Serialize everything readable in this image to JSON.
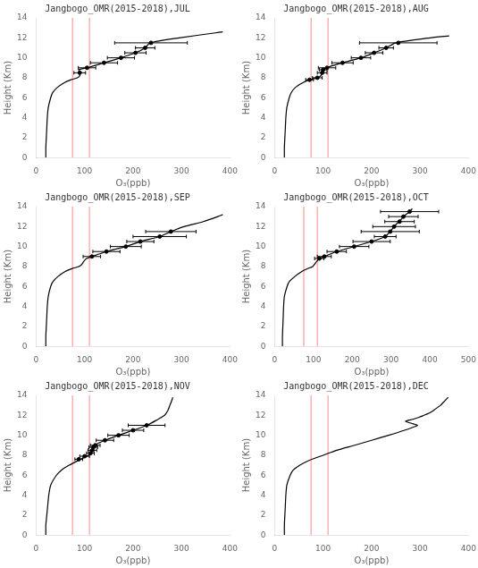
{
  "chart_data": [
    {
      "type": "line",
      "title": "Jangbogo_OMR(2015-2018),JUL",
      "x_label": "O₃(ppb)",
      "y_label": "Height (Km)",
      "xlim": [
        0,
        400
      ],
      "ylim": [
        0,
        14
      ],
      "xticks": [
        0,
        100,
        200,
        300,
        400
      ],
      "yticks": [
        0,
        2,
        4,
        6,
        8,
        10,
        12,
        14
      ],
      "grid": false,
      "vlines": [
        {
          "x": 75,
          "color": "#ff8888"
        },
        {
          "x": 110,
          "color": "#ff8888"
        }
      ],
      "series": [
        {
          "type": "line",
          "color": "black",
          "line_style": "solid",
          "x": [
            20,
            20,
            21,
            22,
            23,
            25,
            30,
            34,
            43,
            58,
            72,
            85,
            90,
            90,
            88,
            105,
            140,
            175,
            205,
            225,
            235,
            295,
            370,
            385
          ],
          "y": [
            0,
            1,
            2,
            3,
            4,
            5,
            6,
            6.5,
            7.0,
            7.5,
            7.8,
            8.0,
            8.2,
            8.5,
            8.8,
            9.0,
            9.5,
            10.0,
            10.5,
            11.0,
            11.5,
            12.0,
            12.5,
            12.6
          ]
        },
        {
          "type": "scatter",
          "color": "black",
          "marker": "dot",
          "x": [
            90,
            105,
            140,
            175,
            205,
            225,
            237
          ],
          "y": [
            8.5,
            9.0,
            9.5,
            10.0,
            10.5,
            11.0,
            11.5
          ],
          "x_err": [
            12,
            18,
            28,
            28,
            22,
            20,
            75
          ]
        }
      ]
    },
    {
      "type": "line",
      "title": "Jangbogo_OMR(2015-2018),AUG",
      "x_label": "O₃(ppb)",
      "y_label": "Height (Km)",
      "xlim": [
        0,
        400
      ],
      "ylim": [
        0,
        14
      ],
      "xticks": [
        0,
        100,
        200,
        300,
        400
      ],
      "yticks": [
        0,
        2,
        4,
        6,
        8,
        10,
        12,
        14
      ],
      "grid": false,
      "vlines": [
        {
          "x": 75,
          "color": "#ff8888"
        },
        {
          "x": 110,
          "color": "#ff8888"
        }
      ],
      "series": [
        {
          "type": "line",
          "color": "black",
          "line_style": "solid",
          "x": [
            20,
            20,
            21,
            22,
            23,
            25,
            30,
            34,
            42,
            58,
            72,
            88,
            95,
            98,
            100,
            108,
            118,
            140,
            178,
            205,
            230,
            250,
            320,
            360
          ],
          "y": [
            0,
            1,
            2,
            3,
            4,
            5,
            6,
            6.5,
            7.0,
            7.5,
            7.8,
            8.0,
            8.2,
            8.5,
            8.8,
            9.0,
            9.2,
            9.5,
            10.0,
            10.5,
            11.0,
            11.5,
            12.0,
            12.2
          ]
        },
        {
          "type": "scatter",
          "color": "black",
          "marker": "dot",
          "x": [
            72,
            88,
            98,
            100,
            108,
            140,
            178,
            205,
            230,
            255
          ],
          "y": [
            7.8,
            8.0,
            8.5,
            8.8,
            9.0,
            9.5,
            10.0,
            10.5,
            11.0,
            11.5
          ],
          "x_err": [
            8,
            10,
            10,
            8,
            18,
            22,
            20,
            18,
            15,
            80
          ]
        }
      ]
    },
    {
      "type": "line",
      "title": "Jangbogo_OMR(2015-2018),SEP",
      "x_label": "O₃(ppb)",
      "y_label": "Height (Km)",
      "xlim": [
        0,
        400
      ],
      "ylim": [
        0,
        14
      ],
      "xticks": [
        0,
        100,
        200,
        300,
        400
      ],
      "yticks": [
        0,
        2,
        4,
        6,
        8,
        10,
        12,
        14
      ],
      "grid": false,
      "vlines": [
        {
          "x": 75,
          "color": "#ff8888"
        },
        {
          "x": 110,
          "color": "#ff8888"
        }
      ],
      "series": [
        {
          "type": "line",
          "color": "black",
          "line_style": "solid",
          "x": [
            20,
            20,
            21,
            22,
            23,
            25,
            30,
            35,
            45,
            60,
            75,
            88,
            94,
            98,
            104,
            115,
            145,
            185,
            215,
            255,
            278,
            305,
            345,
            375,
            385
          ],
          "y": [
            0,
            1,
            2,
            3,
            4,
            5,
            6,
            6.5,
            7.0,
            7.5,
            7.8,
            8.0,
            8.2,
            8.5,
            8.8,
            9.0,
            9.5,
            10.0,
            10.5,
            11.0,
            11.5,
            12.0,
            12.5,
            13.0,
            13.2
          ]
        },
        {
          "type": "scatter",
          "color": "black",
          "marker": "dot",
          "x": [
            115,
            145,
            185,
            215,
            255,
            278
          ],
          "y": [
            9.0,
            9.5,
            10.0,
            10.5,
            11.0,
            11.5
          ],
          "x_err": [
            18,
            28,
            32,
            28,
            55,
            52
          ]
        }
      ]
    },
    {
      "type": "line",
      "title": "Jangbogo_OMR(2015-2018),OCT",
      "x_label": "O₃(ppb)",
      "y_label": "Height (Km)",
      "xlim": [
        0,
        500
      ],
      "ylim": [
        0,
        14
      ],
      "xticks": [
        0,
        100,
        200,
        300,
        400,
        500
      ],
      "yticks": [
        0,
        2,
        4,
        6,
        8,
        10,
        12,
        14
      ],
      "grid": false,
      "vlines": [
        {
          "x": 75,
          "color": "#ff8888"
        },
        {
          "x": 110,
          "color": "#ff8888"
        }
      ],
      "series": [
        {
          "type": "line",
          "color": "black",
          "line_style": "solid",
          "x": [
            20,
            20,
            21,
            22,
            23,
            25,
            32,
            38,
            52,
            70,
            85,
            98,
            108,
            115,
            128,
            160,
            205,
            250,
            285,
            298,
            308,
            320,
            328,
            332,
            348,
            355
          ],
          "y": [
            0,
            1,
            2,
            3,
            4,
            5,
            6,
            6.5,
            7.0,
            7.5,
            7.8,
            8.0,
            8.5,
            8.8,
            9.0,
            9.5,
            10.0,
            10.5,
            11.0,
            11.5,
            12.0,
            12.5,
            12.8,
            13.0,
            13.5,
            13.8
          ]
        },
        {
          "type": "scatter",
          "color": "black",
          "marker": "dot",
          "x": [
            115,
            128,
            160,
            205,
            250,
            285,
            298,
            308,
            322,
            332,
            348
          ],
          "y": [
            8.8,
            9.0,
            9.5,
            10.0,
            10.5,
            11.0,
            11.5,
            12.0,
            12.5,
            13.0,
            13.5
          ],
          "x_err": [
            12,
            18,
            25,
            38,
            48,
            28,
            75,
            55,
            38,
            38,
            75
          ]
        }
      ]
    },
    {
      "type": "line",
      "title": "Jangbogo_OMR(2015-2018),NOV",
      "x_label": "O₃(ppb)",
      "y_label": "Height (Km)",
      "xlim": [
        0,
        400
      ],
      "ylim": [
        0,
        14
      ],
      "xticks": [
        0,
        100,
        200,
        300,
        400
      ],
      "yticks": [
        0,
        2,
        4,
        6,
        8,
        10,
        12,
        14
      ],
      "grid": false,
      "vlines": [
        {
          "x": 75,
          "color": "#ff8888"
        },
        {
          "x": 110,
          "color": "#ff8888"
        }
      ],
      "series": [
        {
          "type": "line",
          "color": "black",
          "line_style": "solid",
          "x": [
            20,
            20,
            22,
            24,
            26,
            30,
            42,
            52,
            68,
            88,
            100,
            108,
            112,
            116,
            118,
            122,
            128,
            142,
            170,
            200,
            228,
            248,
            265,
            272,
            276,
            280,
            282
          ],
          "y": [
            0,
            1,
            2,
            3,
            4,
            5,
            6,
            6.5,
            7.0,
            7.5,
            7.8,
            8.0,
            8.2,
            8.5,
            8.8,
            9.0,
            9.2,
            9.5,
            10.0,
            10.5,
            11.0,
            11.5,
            12.0,
            12.5,
            13.0,
            13.5,
            13.8
          ]
        },
        {
          "type": "scatter",
          "color": "black",
          "marker": "dot",
          "x": [
            88,
            100,
            112,
            116,
            118,
            122,
            142,
            170,
            200,
            228
          ],
          "y": [
            7.6,
            7.9,
            8.2,
            8.5,
            8.8,
            9.0,
            9.5,
            10.0,
            10.5,
            11.0
          ],
          "x_err": [
            8,
            10,
            8,
            9,
            9,
            10,
            18,
            22,
            22,
            38
          ]
        }
      ]
    },
    {
      "type": "line",
      "title": "Jangbogo_OMR(2015-2018),DEC",
      "x_label": "O₃(ppb)",
      "y_label": "Height (Km)",
      "xlim": [
        0,
        400
      ],
      "ylim": [
        0,
        14
      ],
      "xticks": [
        0,
        100,
        200,
        300,
        400
      ],
      "yticks": [
        0,
        2,
        4,
        6,
        8,
        10,
        12,
        14
      ],
      "grid": false,
      "vlines": [
        {
          "x": 75,
          "color": "#ff8888"
        },
        {
          "x": 110,
          "color": "#ff8888"
        }
      ],
      "series": [
        {
          "type": "line",
          "color": "black",
          "line_style": "solid",
          "x": [
            20,
            20,
            21,
            22,
            23,
            25,
            32,
            38,
            52,
            72,
            100,
            128,
            165,
            200,
            235,
            268,
            285,
            295,
            282,
            270,
            285,
            298,
            308,
            318,
            328,
            342,
            352,
            358
          ],
          "y": [
            0,
            1,
            2,
            3,
            4,
            5,
            6,
            6.5,
            7.0,
            7.5,
            8.0,
            8.5,
            9.0,
            9.5,
            10.0,
            10.5,
            10.8,
            11.0,
            11.2,
            11.4,
            11.6,
            11.8,
            12.0,
            12.2,
            12.5,
            13.0,
            13.5,
            13.8
          ]
        }
      ]
    }
  ]
}
